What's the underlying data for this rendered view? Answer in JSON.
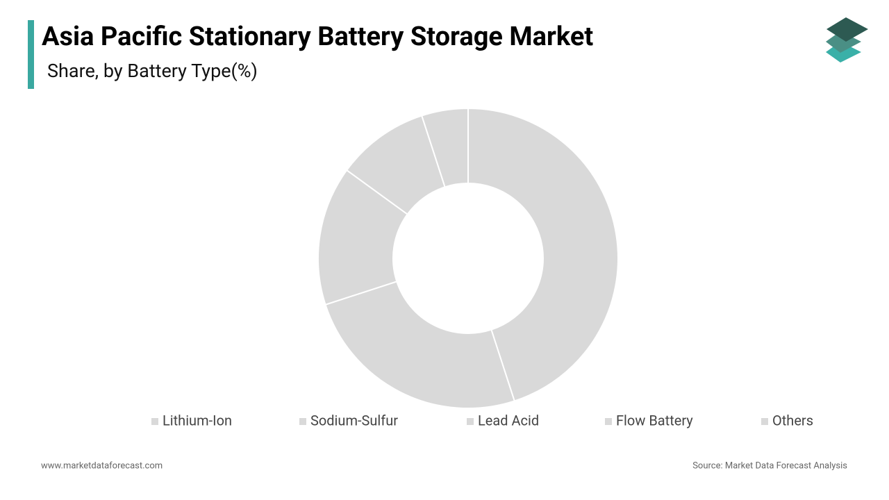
{
  "chart_data": {
    "type": "donut",
    "title": "Asia Pacific Stationary Battery Storage Market",
    "subtitle": "Share, by Battery Type(%)",
    "categories": [
      "Lithium-Ion",
      "Sodium-Sulfur",
      "Lead Acid",
      "Flow Battery",
      "Others"
    ],
    "values": [
      45,
      25,
      15,
      10,
      5
    ],
    "colors": [
      "#d9d9d9",
      "#d9d9d9",
      "#d9d9d9",
      "#d9d9d9",
      "#d9d9d9"
    ],
    "website": "www.marketdataforecast.com",
    "source": "Source: Market Data Forecast Analysis"
  }
}
